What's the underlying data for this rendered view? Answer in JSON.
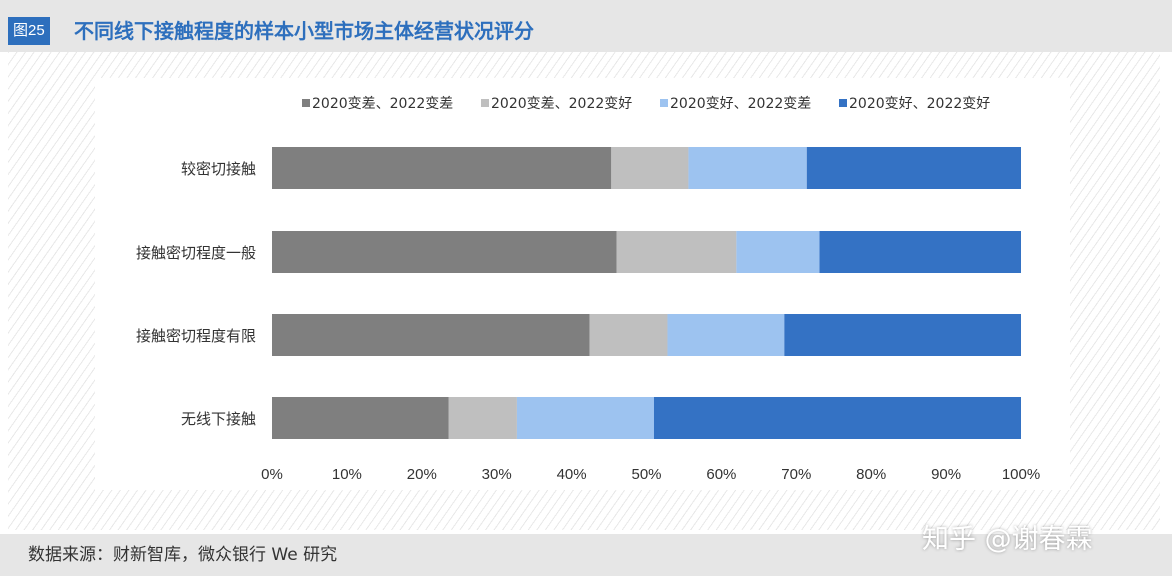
{
  "figure": {
    "number": "图25",
    "title": "不同线下接触程度的样本小型市场主体经营状况评分"
  },
  "source": "数据来源：财新智库，微众银行 We 研究",
  "watermark": "知乎 @谢春霖",
  "chart_data": {
    "type": "bar",
    "orientation": "horizontal",
    "stacked": true,
    "percent": true,
    "categories": [
      "较密切接触",
      "接触密切程度一般",
      "接触密切程度有限",
      "无线下接触"
    ],
    "series": [
      {
        "name": "2020变差、2022变差",
        "color": "#7f7f7f",
        "values": [
          45.3,
          46.0,
          42.4,
          23.6
        ]
      },
      {
        "name": "2020变差、2022变好",
        "color": "#bfbfbf",
        "values": [
          10.3,
          16.0,
          10.4,
          9.1
        ]
      },
      {
        "name": "2020变好、2022变差",
        "color": "#9dc3f0",
        "values": [
          15.8,
          11.1,
          15.6,
          18.3
        ]
      },
      {
        "name": "2020变好、2022变好",
        "color": "#3472c4",
        "values": [
          28.6,
          26.9,
          31.6,
          49.0
        ]
      }
    ],
    "xlim": [
      0,
      100
    ],
    "xticks": [
      "0%",
      "10%",
      "20%",
      "30%",
      "40%",
      "50%",
      "60%",
      "70%",
      "80%",
      "90%",
      "100%"
    ],
    "legend_position": "top",
    "grid": false
  }
}
